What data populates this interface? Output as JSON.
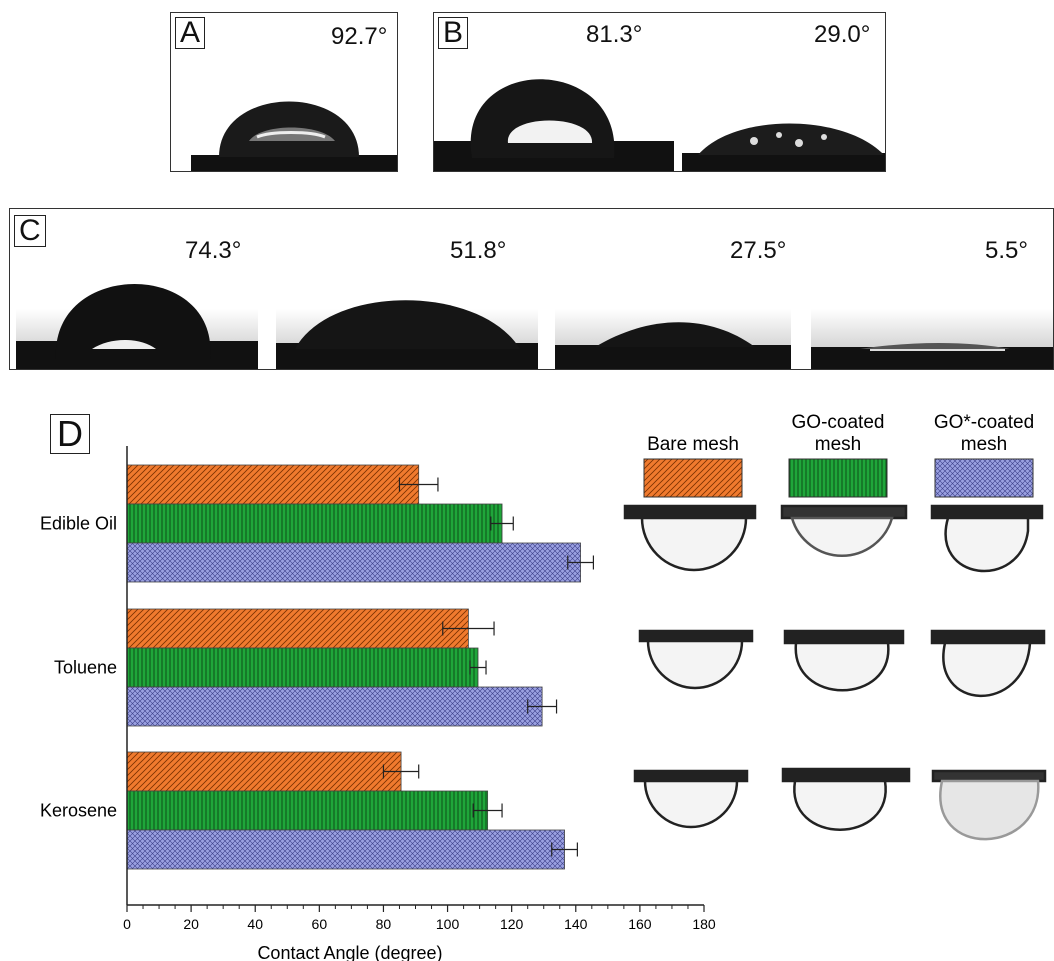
{
  "panels": {
    "a": {
      "label": "A",
      "angles": [
        "92.7°"
      ]
    },
    "b": {
      "label": "B",
      "angles": [
        "81.3°",
        "29.0°"
      ]
    },
    "c": {
      "label": "C",
      "angles": [
        "74.3°",
        "51.8°",
        "27.5°",
        "5.5°"
      ]
    },
    "d": {
      "label": "D"
    }
  },
  "colors": {
    "bare": "#f07a2e",
    "go": "#1fa63a",
    "gostar": "#9aa0e0"
  },
  "chart_data": {
    "type": "bar",
    "orientation": "horizontal",
    "categories": [
      "Edible Oil",
      "Toluene",
      "Kerosene"
    ],
    "series": [
      {
        "name": "Bare mesh",
        "values": [
          91,
          106.5,
          85.5
        ],
        "errors": [
          6,
          8,
          5.5
        ]
      },
      {
        "name": "GO-coated mesh",
        "values": [
          117,
          109.5,
          112.5
        ],
        "errors": [
          3.5,
          2.5,
          4.5
        ]
      },
      {
        "name": "GO*-coated mesh",
        "values": [
          141.5,
          129.5,
          136.5
        ],
        "errors": [
          4,
          4.5,
          4
        ]
      }
    ],
    "xlabel": "Contact Angle (degree)",
    "xlim": [
      0,
      180
    ],
    "xticks": [
      0,
      20,
      40,
      60,
      80,
      100,
      120,
      140,
      160,
      180
    ],
    "legend_placement": "top-right",
    "grid": false
  }
}
